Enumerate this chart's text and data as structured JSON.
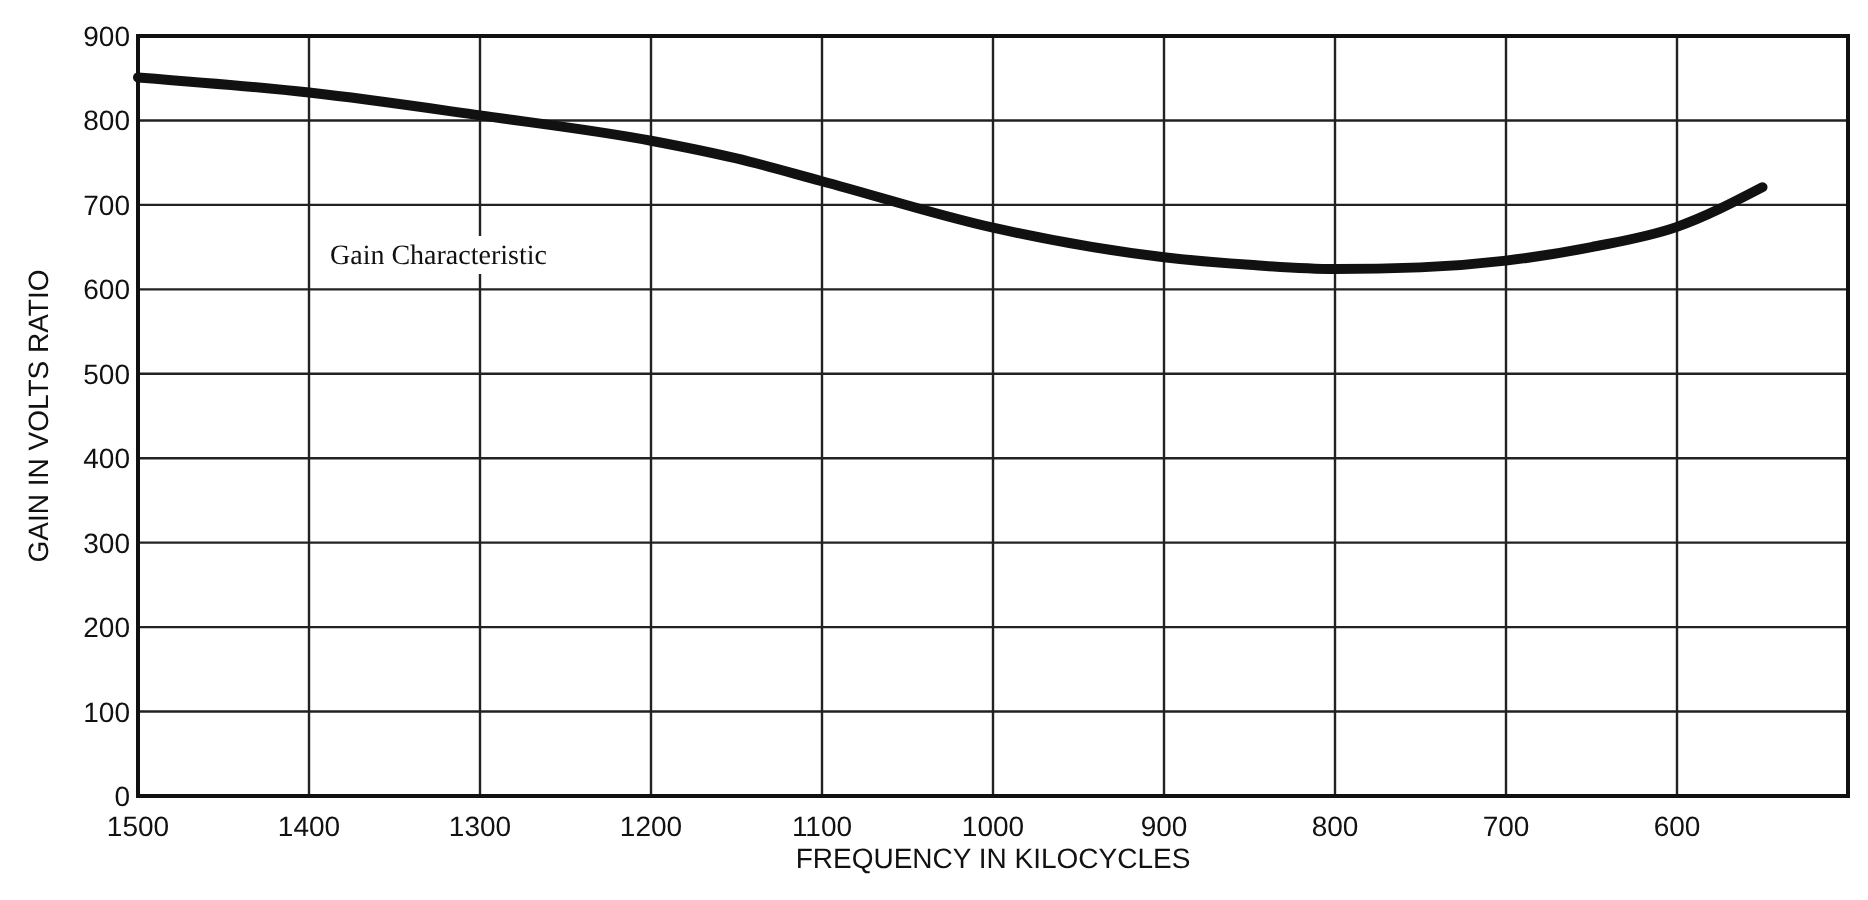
{
  "chart_data": {
    "type": "line",
    "xlabel": "FREQUENCY IN KILOCYCLES",
    "ylabel": "GAIN IN VOLTS RATIO",
    "annotations": [
      "Gain Characteristic"
    ],
    "xlim": [
      1500,
      500
    ],
    "ylim": [
      0,
      900
    ],
    "xticks": [
      1500,
      1400,
      1300,
      1200,
      1100,
      1000,
      900,
      800,
      700,
      600
    ],
    "yticks": [
      0,
      100,
      200,
      300,
      400,
      500,
      600,
      700,
      800,
      900
    ],
    "grid": true,
    "line_style": "solid",
    "marker": "none",
    "series": [
      {
        "color": "#111111",
        "x": [
          1500,
          1400,
          1300,
          1200,
          1150,
          1100,
          1000,
          900,
          850,
          800,
          750,
          700,
          650,
          600,
          550
        ],
        "values": [
          851,
          833,
          806,
          776,
          755,
          728,
          673,
          638,
          629,
          624,
          626,
          634,
          650,
          674,
          721
        ]
      }
    ]
  }
}
